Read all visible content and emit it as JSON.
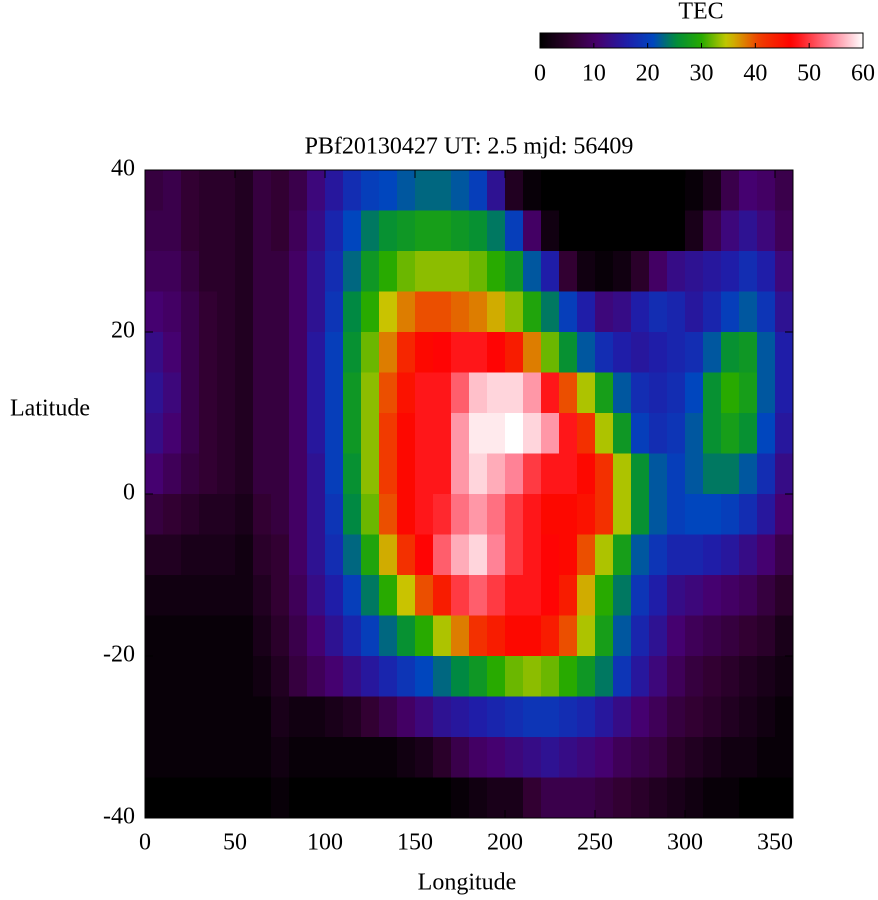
{
  "chart_data": {
    "type": "heatmap",
    "title": "PBf20130427  UT: 2.5  mjd: 56409",
    "xlabel": "Longitude",
    "ylabel": "Latitude",
    "colorbar_label": "TEC",
    "xlim": [
      0,
      360
    ],
    "ylim": [
      -40,
      40
    ],
    "zlim": [
      0,
      60
    ],
    "xticks": [
      0,
      50,
      100,
      150,
      200,
      250,
      300,
      350
    ],
    "yticks": [
      -40,
      -20,
      0,
      20,
      40
    ],
    "zticks": [
      0,
      10,
      20,
      30,
      40,
      50,
      60
    ],
    "x": [
      5,
      15,
      25,
      35,
      45,
      55,
      65,
      75,
      85,
      95,
      105,
      115,
      125,
      135,
      145,
      155,
      165,
      175,
      185,
      195,
      205,
      215,
      225,
      235,
      245,
      255,
      265,
      275,
      285,
      295,
      305,
      315,
      325,
      335,
      345,
      355
    ],
    "y": [
      37.5,
      32.5,
      27.5,
      22.5,
      17.5,
      12.5,
      7.5,
      2.5,
      -2.5,
      -7.5,
      -12.5,
      -17.5,
      -22.5,
      -27.5,
      -32.5,
      -37.5
    ],
    "z": [
      [
        7,
        8,
        6,
        5,
        5,
        4,
        7,
        6,
        8,
        12,
        15,
        18,
        20,
        21,
        22,
        23,
        23,
        22,
        20,
        14,
        4,
        1,
        0,
        0,
        0,
        0,
        0,
        0,
        0,
        0,
        1,
        3,
        8,
        11,
        10,
        8
      ],
      [
        8,
        8,
        6,
        5,
        5,
        4,
        7,
        6,
        9,
        13,
        17,
        21,
        24,
        26,
        27,
        28,
        28,
        27,
        26,
        24,
        20,
        10,
        2,
        0,
        0,
        0,
        0,
        0,
        0,
        0,
        3,
        8,
        12,
        14,
        12,
        9
      ],
      [
        9,
        9,
        7,
        5,
        5,
        4,
        7,
        7,
        10,
        14,
        18,
        23,
        27,
        30,
        32,
        33,
        33,
        33,
        32,
        30,
        27,
        22,
        16,
        6,
        2,
        1,
        2,
        5,
        10,
        13,
        14,
        15,
        16,
        18,
        16,
        12
      ],
      [
        11,
        10,
        8,
        6,
        5,
        4,
        7,
        7,
        10,
        14,
        19,
        25,
        30,
        35,
        38,
        40,
        40,
        39,
        38,
        36,
        33,
        29,
        24,
        20,
        16,
        12,
        13,
        16,
        18,
        17,
        15,
        17,
        20,
        22,
        19,
        14
      ],
      [
        13,
        11,
        8,
        6,
        5,
        4,
        7,
        7,
        10,
        15,
        20,
        26,
        32,
        38,
        43,
        46,
        47,
        48,
        48,
        47,
        44,
        38,
        32,
        26,
        22,
        18,
        16,
        15,
        16,
        17,
        18,
        22,
        26,
        27,
        22,
        16
      ],
      [
        14,
        12,
        8,
        6,
        5,
        4,
        7,
        7,
        10,
        15,
        20,
        27,
        33,
        40,
        45,
        48,
        48,
        52,
        57,
        58,
        58,
        55,
        48,
        40,
        34,
        28,
        22,
        18,
        17,
        18,
        21,
        26,
        30,
        28,
        22,
        16
      ],
      [
        13,
        11,
        8,
        6,
        5,
        4,
        7,
        7,
        10,
        15,
        20,
        27,
        33,
        41,
        46,
        48,
        48,
        55,
        59,
        59,
        60,
        58,
        55,
        48,
        42,
        34,
        27,
        20,
        18,
        19,
        22,
        26,
        28,
        26,
        21,
        15
      ],
      [
        11,
        9,
        7,
        6,
        5,
        4,
        7,
        7,
        10,
        14,
        20,
        26,
        33,
        41,
        46,
        48,
        48,
        55,
        58,
        56,
        54,
        50,
        48,
        48,
        46,
        42,
        34,
        26,
        22,
        20,
        22,
        24,
        24,
        22,
        18,
        13
      ],
      [
        7,
        6,
        5,
        4,
        4,
        3,
        6,
        7,
        10,
        14,
        19,
        25,
        32,
        40,
        46,
        48,
        49,
        53,
        55,
        53,
        50,
        48,
        46,
        46,
        45,
        42,
        34,
        26,
        22,
        20,
        21,
        21,
        20,
        18,
        15,
        11
      ],
      [
        4,
        4,
        3,
        3,
        3,
        2,
        5,
        6,
        10,
        14,
        18,
        23,
        29,
        36,
        42,
        47,
        52,
        56,
        58,
        54,
        50,
        48,
        47,
        46,
        40,
        34,
        28,
        22,
        19,
        17,
        17,
        16,
        15,
        13,
        11,
        8
      ],
      [
        2,
        2,
        2,
        2,
        2,
        2,
        4,
        6,
        9,
        13,
        16,
        20,
        24,
        30,
        35,
        40,
        44,
        50,
        52,
        50,
        48,
        48,
        47,
        44,
        36,
        30,
        24,
        19,
        16,
        13,
        12,
        11,
        10,
        9,
        7,
        5
      ],
      [
        1,
        1,
        1,
        1,
        1,
        1,
        3,
        5,
        8,
        11,
        14,
        17,
        20,
        23,
        26,
        30,
        34,
        38,
        42,
        44,
        46,
        46,
        44,
        40,
        34,
        28,
        22,
        17,
        14,
        11,
        9,
        8,
        7,
        6,
        5,
        3
      ],
      [
        1,
        1,
        1,
        1,
        1,
        1,
        2,
        4,
        7,
        9,
        11,
        13,
        15,
        17,
        19,
        21,
        23,
        25,
        27,
        30,
        32,
        33,
        32,
        30,
        27,
        24,
        19,
        15,
        12,
        9,
        7,
        6,
        5,
        4,
        3,
        2
      ],
      [
        1,
        1,
        1,
        1,
        1,
        1,
        1,
        3,
        2,
        2,
        3,
        4,
        6,
        8,
        10,
        12,
        14,
        15,
        16,
        17,
        18,
        19,
        19,
        18,
        17,
        15,
        13,
        11,
        9,
        7,
        6,
        5,
        4,
        3,
        2,
        1
      ],
      [
        1,
        1,
        1,
        1,
        1,
        1,
        1,
        2,
        1,
        1,
        1,
        1,
        1,
        1,
        2,
        3,
        5,
        8,
        10,
        11,
        12,
        13,
        14,
        13,
        12,
        11,
        9,
        8,
        7,
        5,
        4,
        3,
        2,
        2,
        1,
        1
      ],
      [
        0,
        0,
        0,
        0,
        0,
        0,
        0,
        1,
        0,
        0,
        0,
        0,
        0,
        0,
        0,
        0,
        0,
        1,
        2,
        3,
        3,
        6,
        8,
        8,
        8,
        7,
        6,
        5,
        4,
        3,
        2,
        1,
        1,
        0,
        0,
        0
      ]
    ]
  }
}
